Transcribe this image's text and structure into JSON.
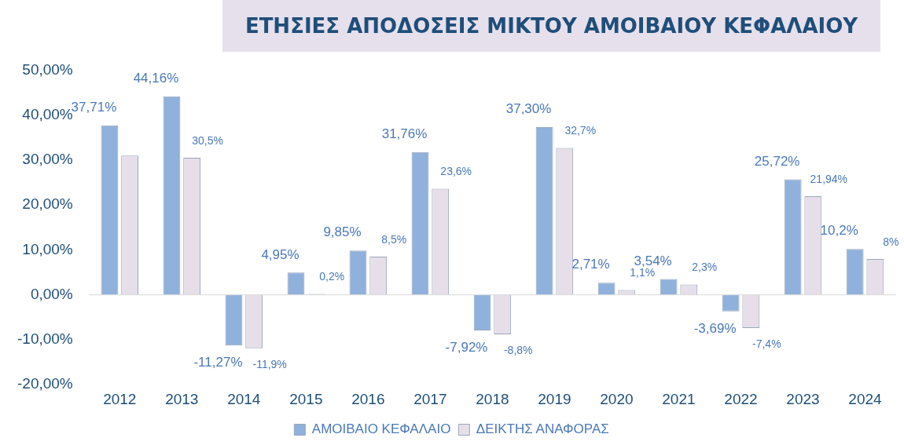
{
  "chart_data": {
    "type": "bar",
    "title": "ΕΤΗΣΙΕΣ ΑΠΟΔΟΣΕΙΣ ΜΙΚΤΟΥ ΑΜΟΙΒΑΙΟΥ ΚΕΦΑΛΑΙΟΥ",
    "categories": [
      "2012",
      "2013",
      "2014",
      "2015",
      "2016",
      "2017",
      "2018",
      "2019",
      "2020",
      "2021",
      "2022",
      "2023",
      "2024"
    ],
    "series": [
      {
        "name": "ΑΜΟΙΒΑΙΟ ΚΕΦΑΛΑΙΟ",
        "color": "#8fb1dc",
        "values": [
          37.71,
          44.16,
          -11.27,
          4.95,
          9.85,
          31.76,
          -7.92,
          37.3,
          2.71,
          3.54,
          -3.69,
          25.72,
          10.2
        ],
        "value_labels": [
          "37,71%",
          "44,16%",
          "-11,27%",
          "4,95%",
          "9,85%",
          "31,76%",
          "-7,92%",
          "37,30%",
          "2,71%",
          "3,54%",
          "-3,69%",
          "25,72%",
          "10,2%"
        ]
      },
      {
        "name": "ΔΕΙΚΤΗΣ ΑΝΑΦΟΡΑΣ",
        "color": "#e6dfea",
        "values": [
          31,
          30.5,
          -11.9,
          0.2,
          8.5,
          23.6,
          -8.8,
          32.7,
          1.1,
          2.3,
          -7.4,
          21.94,
          8
        ],
        "value_labels": [
          null,
          "30,5%",
          "-11,9%",
          "0,2%",
          "8,5%",
          "23,6%",
          "-8,8%",
          "32,7%",
          "1,1%",
          "2,3%",
          "-7,4%",
          "21,94%",
          "8%"
        ]
      }
    ],
    "ylim": [
      -20,
      50
    ],
    "yticks": [
      {
        "value": -20,
        "label": "-20,00%"
      },
      {
        "value": -10,
        "label": "-10,00%"
      },
      {
        "value": 0,
        "label": "0,00%"
      },
      {
        "value": 10,
        "label": "10,00%"
      },
      {
        "value": 20,
        "label": "20,00%"
      },
      {
        "value": 30,
        "label": "30,00%"
      },
      {
        "value": 40,
        "label": "40,00%"
      },
      {
        "value": 50,
        "label": "50,00%"
      }
    ],
    "ref_lines": [
      {
        "axis": "y",
        "value": 0,
        "color": "#d9d9d9"
      }
    ],
    "legend": "bottom",
    "grid": false
  }
}
